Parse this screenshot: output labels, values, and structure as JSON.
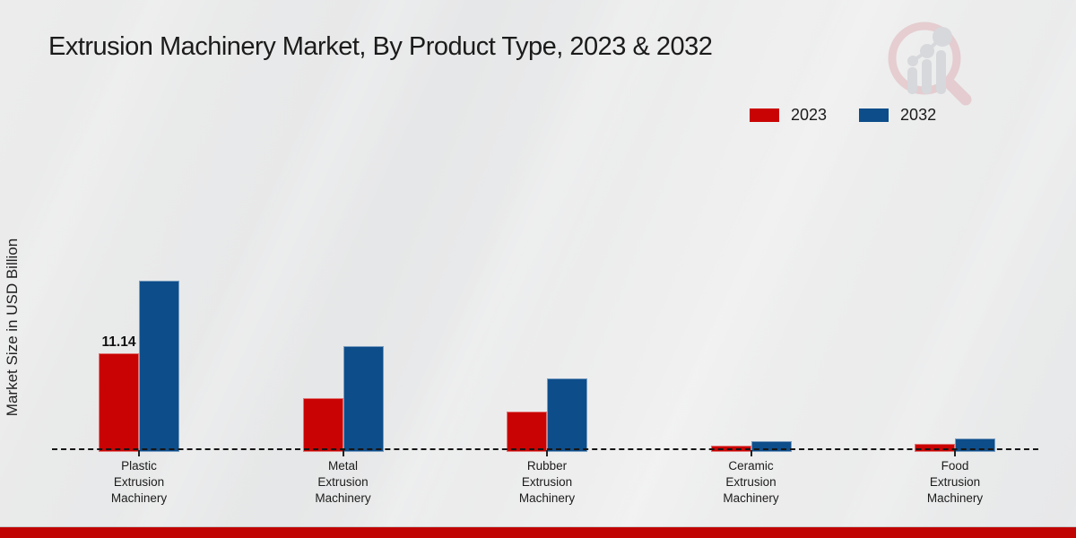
{
  "chart_data": {
    "type": "bar",
    "title": "Extrusion Machinery Market, By Product Type, 2023 & 2032",
    "ylabel": "Market Size in USD Billion",
    "xlabel": "",
    "categories": [
      "Plastic Extrusion Machinery",
      "Metal Extrusion Machinery",
      "Rubber Extrusion Machinery",
      "Ceramic Extrusion Machinery",
      "Food Extrusion Machinery"
    ],
    "series": [
      {
        "name": "2023",
        "color": "#c90303",
        "values": [
          11.14,
          6.1,
          4.6,
          0.7,
          0.9
        ]
      },
      {
        "name": "2032",
        "color": "#0d4d8a",
        "values": [
          19.3,
          12.0,
          8.3,
          1.2,
          1.5
        ]
      }
    ],
    "bar_value_labels": [
      {
        "series_index": 0,
        "category_index": 0,
        "text": "11.14"
      }
    ],
    "baseline_style": "dashed",
    "grid": false,
    "legend_position": "top-right",
    "ylim": [
      0,
      20
    ]
  },
  "branding": {
    "watermark_icon": "magnifier-bar-chart-logo",
    "footer_color": "#c00404"
  }
}
